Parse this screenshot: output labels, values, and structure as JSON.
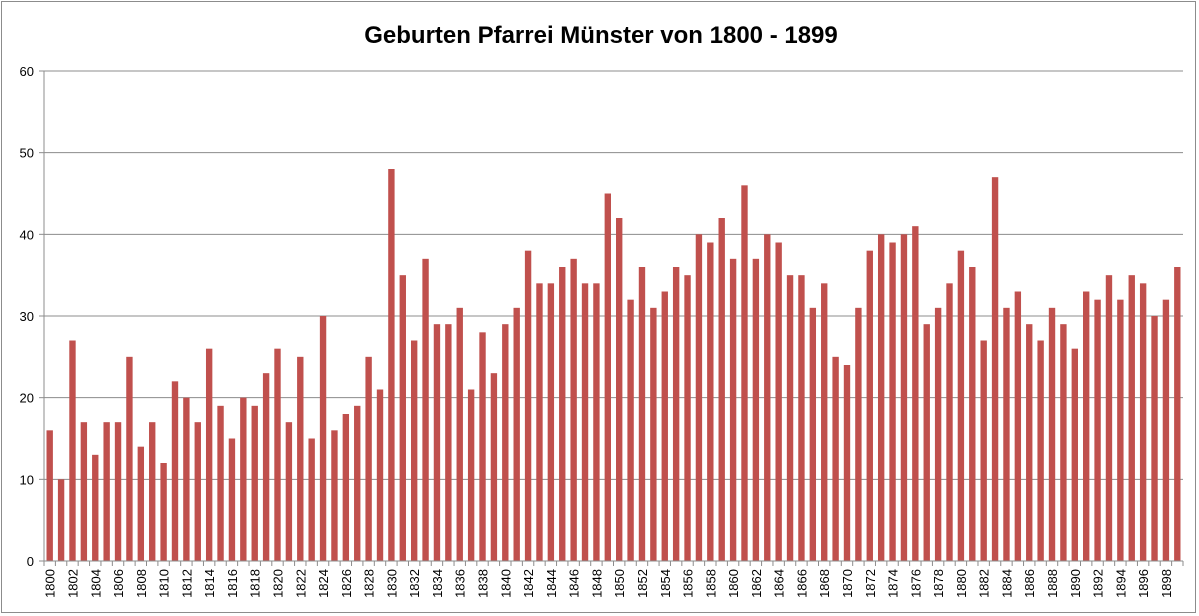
{
  "chart_data": {
    "type": "bar",
    "title": "Geburten Pfarrei Münster von 1800 - 1899",
    "xlabel": "",
    "ylabel": "",
    "ylim": [
      0,
      60
    ],
    "yticks": [
      0,
      10,
      20,
      30,
      40,
      50,
      60
    ],
    "grid": true,
    "legend": "none",
    "bar_color": "#c0504d",
    "categories": [
      "1800",
      "1801",
      "1802",
      "1803",
      "1804",
      "1805",
      "1806",
      "1807",
      "1808",
      "1809",
      "1810",
      "1811",
      "1812",
      "1813",
      "1814",
      "1815",
      "1816",
      "1817",
      "1818",
      "1819",
      "1820",
      "1821",
      "1822",
      "1823",
      "1824",
      "1825",
      "1826",
      "1827",
      "1828",
      "1829",
      "1830",
      "1831",
      "1832",
      "1833",
      "1834",
      "1835",
      "1836",
      "1837",
      "1838",
      "1839",
      "1840",
      "1841",
      "1842",
      "1843",
      "1844",
      "1845",
      "1846",
      "1847",
      "1848",
      "1849",
      "1850",
      "1851",
      "1852",
      "1853",
      "1854",
      "1855",
      "1856",
      "1857",
      "1858",
      "1859",
      "1860",
      "1861",
      "1862",
      "1863",
      "1864",
      "1865",
      "1866",
      "1867",
      "1868",
      "1869",
      "1870",
      "1871",
      "1872",
      "1873",
      "1874",
      "1875",
      "1876",
      "1877",
      "1878",
      "1879",
      "1880",
      "1881",
      "1882",
      "1883",
      "1884",
      "1885",
      "1886",
      "1887",
      "1888",
      "1889",
      "1890",
      "1891",
      "1892",
      "1893",
      "1894",
      "1895",
      "1896",
      "1897",
      "1898",
      "1899"
    ],
    "values": [
      16,
      10,
      27,
      17,
      13,
      17,
      17,
      25,
      14,
      17,
      12,
      22,
      20,
      17,
      26,
      19,
      15,
      20,
      19,
      23,
      26,
      17,
      25,
      15,
      30,
      16,
      18,
      19,
      25,
      21,
      48,
      35,
      27,
      37,
      29,
      29,
      31,
      21,
      28,
      23,
      29,
      31,
      38,
      34,
      34,
      36,
      37,
      34,
      34,
      45,
      42,
      32,
      36,
      31,
      33,
      36,
      35,
      40,
      39,
      42,
      37,
      46,
      37,
      40,
      39,
      35,
      35,
      31,
      34,
      25,
      24,
      31,
      38,
      40,
      39,
      40,
      41,
      29,
      31,
      34,
      38,
      36,
      27,
      47,
      31,
      33,
      29,
      27,
      31,
      29,
      26,
      33,
      32,
      35,
      32,
      35,
      34,
      30,
      32,
      36
    ],
    "shown_tick_labels": [
      "1800",
      "1802",
      "1804",
      "1806",
      "1808",
      "1810",
      "1812",
      "1814",
      "1816",
      "1818",
      "1820",
      "1822",
      "1824",
      "1826",
      "1828",
      "1830",
      "1832",
      "1834",
      "1836",
      "1838",
      "1840",
      "1842",
      "1844",
      "1846",
      "1848",
      "1850",
      "1852",
      "1854",
      "1856",
      "1858",
      "1860",
      "1862",
      "1864",
      "1866",
      "1868",
      "1870",
      "1872",
      "1874",
      "1876",
      "1878",
      "1880",
      "1882",
      "1884",
      "1886",
      "1888",
      "1890",
      "1892",
      "1894",
      "1896",
      "1898"
    ]
  }
}
